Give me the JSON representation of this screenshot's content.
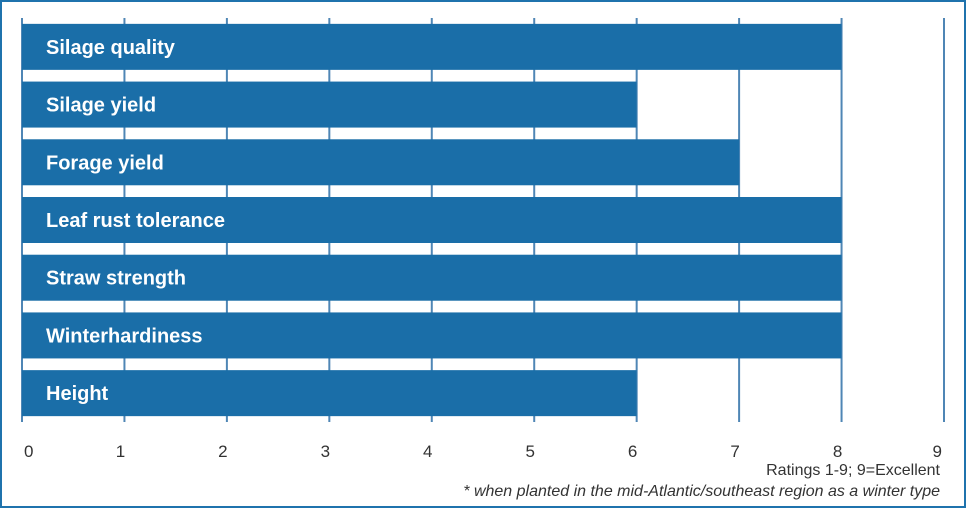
{
  "colors": {
    "bar": "#1a6ea8",
    "gridline": "#4f86b5",
    "frame": "#1f73ad",
    "label_text": "#ffffff"
  },
  "chart_data": {
    "type": "bar",
    "orientation": "horizontal",
    "categories": [
      "Silage quality",
      "Silage yield",
      "Forage yield",
      "Leaf rust tolerance",
      "Straw strength",
      "Winterhardiness",
      "Height"
    ],
    "values": [
      8,
      6,
      7,
      8,
      8,
      8,
      6
    ],
    "xlim": [
      0,
      9
    ],
    "xticks": [
      "0",
      "1",
      "2",
      "3",
      "4",
      "5",
      "6",
      "7",
      "8",
      "9"
    ],
    "grid": true,
    "notes": [
      "Ratings 1-9; 9=Excellent",
      "* when planted in the mid-Atlantic/southeast region as a winter type"
    ]
  }
}
